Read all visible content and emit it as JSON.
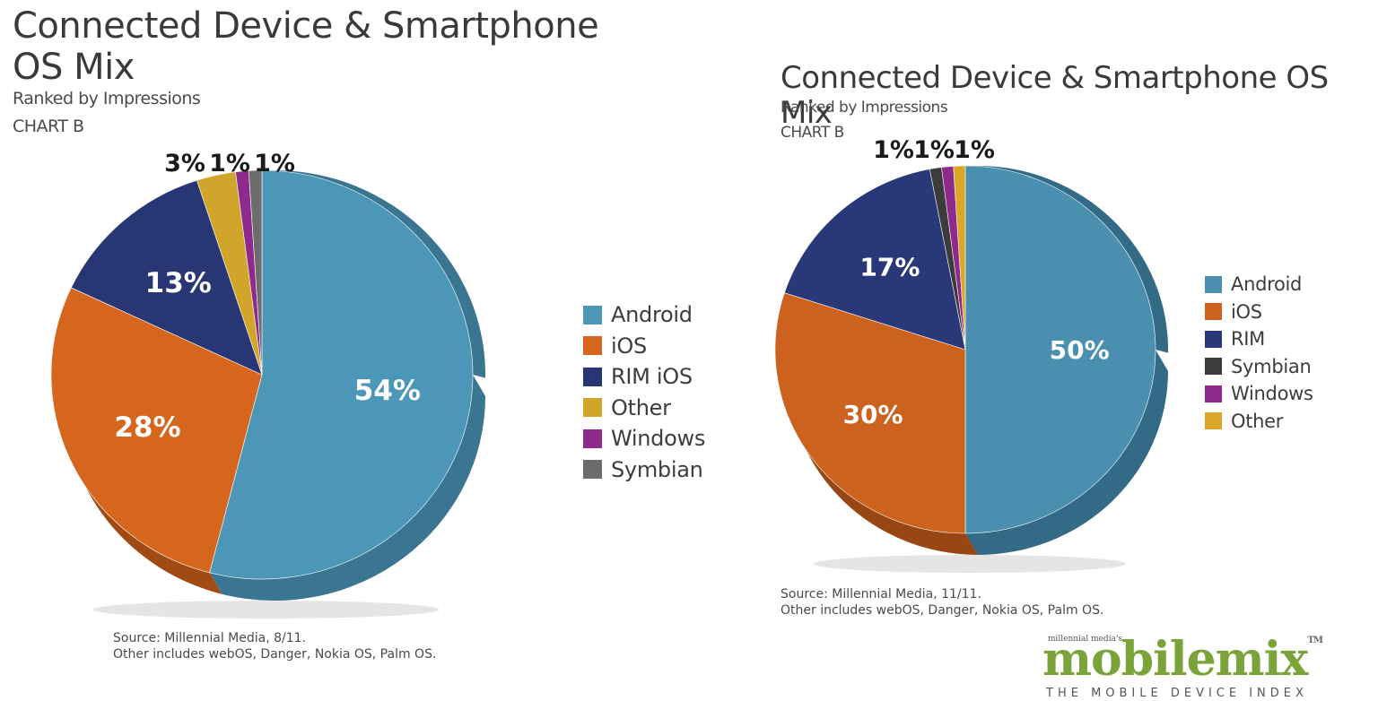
{
  "charts": [
    {
      "title_line1": "Connected Device & Smartphone",
      "title_line2": "OS Mix",
      "subtitle": "Ranked by Impressions",
      "chart_label": "CHART B",
      "source_line1": "Source: Millennial Media, 8/11.",
      "source_line2": "Other includes webOS, Danger, Nokia OS, Palm OS."
    },
    {
      "title_line1": "Connected Device & Smartphone OS Mix",
      "title_line2": "",
      "subtitle": "Ranked by Impressions",
      "chart_label": "CHART B",
      "source_line1": "Source: Millennial Media, 11/11.",
      "source_line2": "Other includes webOS, Danger, Nokia OS, Palm OS."
    }
  ],
  "logo": {
    "small_text": "millennial media's",
    "main_text": "mobilemix",
    "tm": "TM",
    "tagline": "THE MOBILE DEVICE INDEX"
  },
  "chart_data": [
    {
      "type": "pie",
      "title": "Connected Device & Smartphone OS Mix",
      "subtitle": "Ranked by Impressions",
      "chart_label": "CHART B",
      "legend_position": "right",
      "slices": [
        {
          "name": "Android",
          "value": 54,
          "label": "54%",
          "color": "#4c96b8",
          "side": "#3a7592",
          "label_color": "#ffffff"
        },
        {
          "name": "iOS",
          "value": 28,
          "label": "28%",
          "color": "#d6661e",
          "side": "#a14a14",
          "label_color": "#ffffff"
        },
        {
          "name": "RIM iOS",
          "value": 13,
          "label": "13%",
          "color": "#283674",
          "side": "#1b2553",
          "label_color": "#ffffff"
        },
        {
          "name": "Other",
          "value": 3,
          "label": "3%",
          "color": "#d1a52a",
          "side": "#9c7b1f",
          "label_color": "#1a1a1a"
        },
        {
          "name": "Windows",
          "value": 1,
          "label": "1%",
          "color": "#8d2a8c",
          "side": "#641d63",
          "label_color": "#1a1a1a"
        },
        {
          "name": "Symbian",
          "value": 1,
          "label": "1%",
          "color": "#6c6c6c",
          "side": "#4d4d4d",
          "label_color": "#1a1a1a"
        }
      ],
      "legend": [
        "Android",
        "iOS",
        "RIM iOS",
        "Other",
        "Windows",
        "Symbian"
      ]
    },
    {
      "type": "pie",
      "title": "Connected Device & Smartphone OS Mix",
      "subtitle": "Ranked by Impressions",
      "chart_label": "CHART B",
      "legend_position": "right",
      "slices": [
        {
          "name": "Android",
          "value": 50,
          "label": "50%",
          "color": "#4a8fb0",
          "side": "#336a85",
          "label_color": "#ffffff"
        },
        {
          "name": "iOS",
          "value": 30,
          "label": "30%",
          "color": "#cc621e",
          "side": "#984714",
          "label_color": "#ffffff"
        },
        {
          "name": "RIM",
          "value": 17,
          "label": "17%",
          "color": "#293878",
          "side": "#1b2656",
          "label_color": "#ffffff"
        },
        {
          "name": "Symbian",
          "value": 1,
          "label": "1%",
          "color": "#3c3c3c",
          "side": "#262626",
          "label_color": "#1a1a1a"
        },
        {
          "name": "Windows",
          "value": 1,
          "label": "1%",
          "color": "#8d2a8c",
          "side": "#641d63",
          "label_color": "#1a1a1a"
        },
        {
          "name": "Other",
          "value": 1,
          "label": "1%",
          "color": "#dca629",
          "side": "#a57c1e",
          "label_color": "#1a1a1a"
        }
      ],
      "legend": [
        "Android",
        "iOS",
        "RIM",
        "Symbian",
        "Windows",
        "Other"
      ]
    }
  ]
}
